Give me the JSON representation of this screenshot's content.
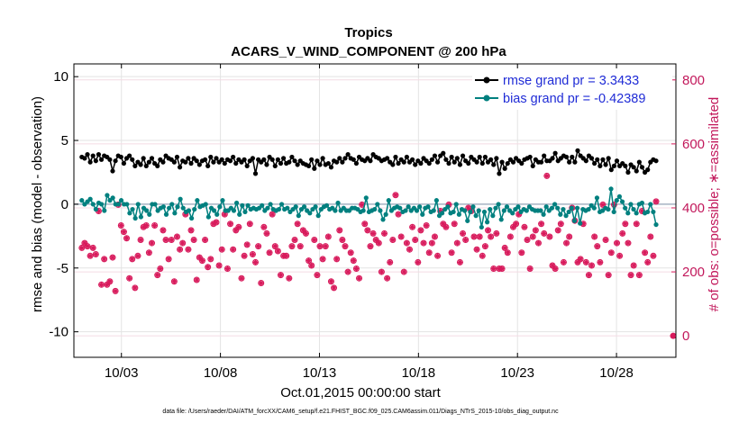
{
  "colors": {
    "rmse": "#000000",
    "bias": "#00807f",
    "obs": "#d81b5c",
    "zero_line": "#a7b3c4",
    "legend_text": "#1f2bd6"
  },
  "chart_data": {
    "type": "line",
    "title": "Tropics",
    "subtitle": "ACARS_V_WIND_COMPONENT @ 200 hPa",
    "xlabel": "Oct.01,2015 00:00:00 start",
    "ylabel": "rmse and bias (model - observation)",
    "y2label": "# of obs: o=possible; ∗=assimilated",
    "footnote": "data file: /Users/raeder/DAI/ATM_forcXX/CAM6_setup/f.e21.FHIST_BGC.f09_025.CAM6assim.011/Diags_NTrS_2015-10/obs_diag_output.nc",
    "x_ticks": [
      "10/03",
      "10/08",
      "10/13",
      "10/18",
      "10/23",
      "10/28"
    ],
    "x_tick_days": [
      3,
      8,
      13,
      18,
      23,
      28
    ],
    "xlim_days": [
      0.6,
      31.0
    ],
    "y_ticks": [
      -10,
      -5,
      0,
      5,
      10
    ],
    "ylim": [
      -12,
      11
    ],
    "y2_ticks": [
      0,
      200,
      400,
      600,
      800
    ],
    "y2lim": [
      -67,
      850
    ],
    "legend_position": "top-right",
    "grid": true,
    "series": [
      {
        "name": "rmse grand pr = 3.3433",
        "key": "rmse",
        "values": [
          3.7,
          3.6,
          3.9,
          3.3,
          3.8,
          3.4,
          3.9,
          3.5,
          3.8,
          3.7,
          3.5,
          2.6,
          3.4,
          3.8,
          3.7,
          3.2,
          3.6,
          3.8,
          3.5,
          3.0,
          3.3,
          3.1,
          3.6,
          3.0,
          3.3,
          3.6,
          3.2,
          3.0,
          3.5,
          3.3,
          3.8,
          3.6,
          3.5,
          3.3,
          3.7,
          2.9,
          3.4,
          3.3,
          3.6,
          3.2,
          3.6,
          3.4,
          3.1,
          3.4,
          3.5,
          3.0,
          3.7,
          3.3,
          3.6,
          3.3,
          3.5,
          3.2,
          3.5,
          3.4,
          3.7,
          3.2,
          3.5,
          3.3,
          3.5,
          3.0,
          3.4,
          3.6,
          2.4,
          3.5,
          3.3,
          3.5,
          3.1,
          3.7,
          3.5,
          3.0,
          3.5,
          3.2,
          3.6,
          3.2,
          3.3,
          3.7,
          3.4,
          3.1,
          3.4,
          3.2,
          3.1,
          3.0,
          3.5,
          2.8,
          3.4,
          3.1,
          3.6,
          3.1,
          3.2,
          2.9,
          3.4,
          3.3,
          3.6,
          3.3,
          3.6,
          3.9,
          3.6,
          3.5,
          3.2,
          3.7,
          3.5,
          3.4,
          3.6,
          3.4,
          3.9,
          3.7,
          3.6,
          3.4,
          3.5,
          3.6,
          3.3,
          3.1,
          3.7,
          3.2,
          3.5,
          3.3,
          3.7,
          3.3,
          3.5,
          3.1,
          3.4,
          3.2,
          3.6,
          3.4,
          3.2,
          3.5,
          3.8,
          3.3,
          3.8,
          4.0,
          3.5,
          3.2,
          3.7,
          3.3,
          3.6,
          3.1,
          3.8,
          3.4,
          3.2,
          3.7,
          3.5,
          3.3,
          3.7,
          3.2,
          3.7,
          3.3,
          3.5,
          3.1,
          3.6,
          2.4,
          3.3,
          2.8,
          3.2,
          3.5,
          3.3,
          3.6,
          3.4,
          3.2,
          3.5,
          3.6,
          3.7,
          3.0,
          3.5,
          3.3,
          3.3,
          3.8,
          3.4,
          3.4,
          3.6,
          4.0,
          3.4,
          3.6,
          3.8,
          3.7,
          3.3,
          3.7,
          3.3,
          4.2,
          3.8,
          3.6,
          3.4,
          3.8,
          3.6,
          3.2,
          3.5,
          3.0,
          3.5,
          3.1,
          3.6,
          2.7,
          3.0,
          3.4,
          3.0,
          3.2,
          3.0,
          2.5,
          3.1,
          2.9,
          2.6,
          3.3,
          2.9,
          2.5,
          2.7,
          3.3,
          3.5,
          3.4
        ]
      },
      {
        "name": "bias grand pr = -0.42389",
        "key": "bias",
        "values": [
          0.3,
          0.0,
          0.2,
          0.4,
          0.0,
          -0.4,
          0.1,
          0.0,
          -0.5,
          0.7,
          0.3,
          0.5,
          0.0,
          0.0,
          0.3,
          0.0,
          0.0,
          -0.7,
          -0.4,
          -1.1,
          0.0,
          -1.0,
          -0.3,
          -0.5,
          -0.8,
          0.0,
          0.0,
          -0.5,
          -0.3,
          -0.2,
          -0.8,
          -0.3,
          0.0,
          -0.7,
          -0.2,
          0.4,
          -0.3,
          -0.6,
          -0.5,
          -1.1,
          -0.4,
          0.3,
          -0.2,
          -0.1,
          0.0,
          -1.0,
          -0.3,
          -0.5,
          -0.8,
          -0.2,
          0.3,
          -0.5,
          -0.5,
          -0.3,
          -0.5,
          0.1,
          -0.8,
          -0.1,
          -0.6,
          -0.1,
          -0.4,
          -0.3,
          -0.4,
          -0.3,
          -0.1,
          -0.5,
          -0.3,
          0.0,
          -0.4,
          -0.5,
          -0.4,
          0.0,
          -0.4,
          -0.3,
          -0.6,
          -0.4,
          -0.2,
          -0.9,
          -0.4,
          -0.2,
          -0.5,
          -0.7,
          -0.4,
          -0.2,
          -0.9,
          -0.4,
          -0.2,
          -0.1,
          -0.4,
          -0.3,
          -0.5,
          0.1,
          -0.5,
          -0.3,
          -0.5,
          -0.5,
          -0.3,
          -0.3,
          -0.4,
          -0.6,
          -0.5,
          0.5,
          -0.6,
          -0.5,
          -0.4,
          0.0,
          -0.5,
          -1.2,
          -0.8,
          0.3,
          -0.5,
          -0.3,
          -0.2,
          -0.3,
          -0.6,
          -0.5,
          -0.2,
          -0.5,
          -0.3,
          -0.5,
          -0.2,
          -0.8,
          -0.3,
          -0.2,
          -0.6,
          -0.5,
          0.3,
          -0.9,
          -0.7,
          -0.4,
          -0.2,
          -0.7,
          -0.6,
          0.0,
          -0.8,
          -0.4,
          -0.5,
          -1.3,
          -0.6,
          -0.2,
          -0.9,
          -0.5,
          -1.8,
          -0.6,
          -1.4,
          -0.4,
          -0.9,
          -0.3,
          0.0,
          -1.2,
          -0.5,
          -0.2,
          -0.5,
          -0.7,
          -0.4,
          -0.2,
          -0.6,
          -0.4,
          -0.5,
          -0.2,
          -0.4,
          -0.5,
          -0.5,
          -0.5,
          -0.8,
          -0.2,
          -0.5,
          -0.3,
          0.0,
          -0.3,
          -0.8,
          -0.4,
          -0.9,
          -0.6,
          -0.3,
          -1.3,
          -0.3,
          -1.5,
          -0.4,
          -0.5,
          -0.4,
          -0.1,
          -0.3,
          0.5,
          -0.6,
          -0.5,
          -0.3,
          -0.4,
          1.2,
          -0.6,
          0.3,
          0.6,
          0.2,
          -0.3,
          -0.7,
          0.0,
          -0.4,
          -0.7,
          0.0,
          0.1,
          -0.7,
          -0.6,
          0.0,
          -0.6,
          -1.6
        ]
      },
      {
        "name": "# of obs (possible and assimilated)",
        "key": "obs",
        "axis": "right",
        "values": [
          275,
          290,
          280,
          250,
          275,
          255,
          390,
          160,
          240,
          160,
          170,
          245,
          140,
          410,
          345,
          325,
          305,
          180,
          240,
          150,
          250,
          300,
          340,
          345,
          260,
          290,
          345,
          190,
          210,
          330,
          300,
          240,
          300,
          170,
          310,
          270,
          290,
          380,
          270,
          330,
          300,
          175,
          245,
          235,
          300,
          215,
          240,
          350,
          355,
          220,
          270,
          380,
          210,
          350,
          270,
          330,
          340,
          180,
          250,
          285,
          350,
          255,
          230,
          280,
          165,
          340,
          320,
          260,
          380,
          280,
          265,
          190,
          250,
          250,
          180,
          280,
          300,
          350,
          280,
          330,
          320,
          235,
          220,
          300,
          190,
          280,
          240,
          280,
          310,
          170,
          150,
          240,
          330,
          300,
          280,
          200,
          260,
          235,
          210,
          180,
          410,
          350,
          330,
          280,
          320,
          300,
          290,
          200,
          320,
          180,
          230,
          300,
          440,
          380,
          310,
          200,
          290,
          270,
          340,
          300,
          230,
          330,
          290,
          345,
          260,
          290,
          310,
          250,
          390,
          350,
          340,
          410,
          260,
          350,
          290,
          230,
          320,
          300,
          400,
          390,
          310,
          270,
          310,
          250,
          280,
          330,
          310,
          210,
          320,
          210,
          210,
          275,
          260,
          310,
          340,
          350,
          380,
          260,
          340,
          300,
          210,
          310,
          330,
          290,
          350,
          320,
          500,
          310,
          220,
          210,
          330,
          350,
          230,
          290,
          310,
          400,
          360,
          230,
          240,
          350,
          230,
          190,
          220,
          310,
          280,
          230,
          410,
          300,
          190,
          260,
          410,
          290,
          250,
          320,
          350,
          290,
          190,
          220,
          350,
          190,
          390,
          260,
          230,
          310,
          250,
          420
        ]
      }
    ]
  }
}
